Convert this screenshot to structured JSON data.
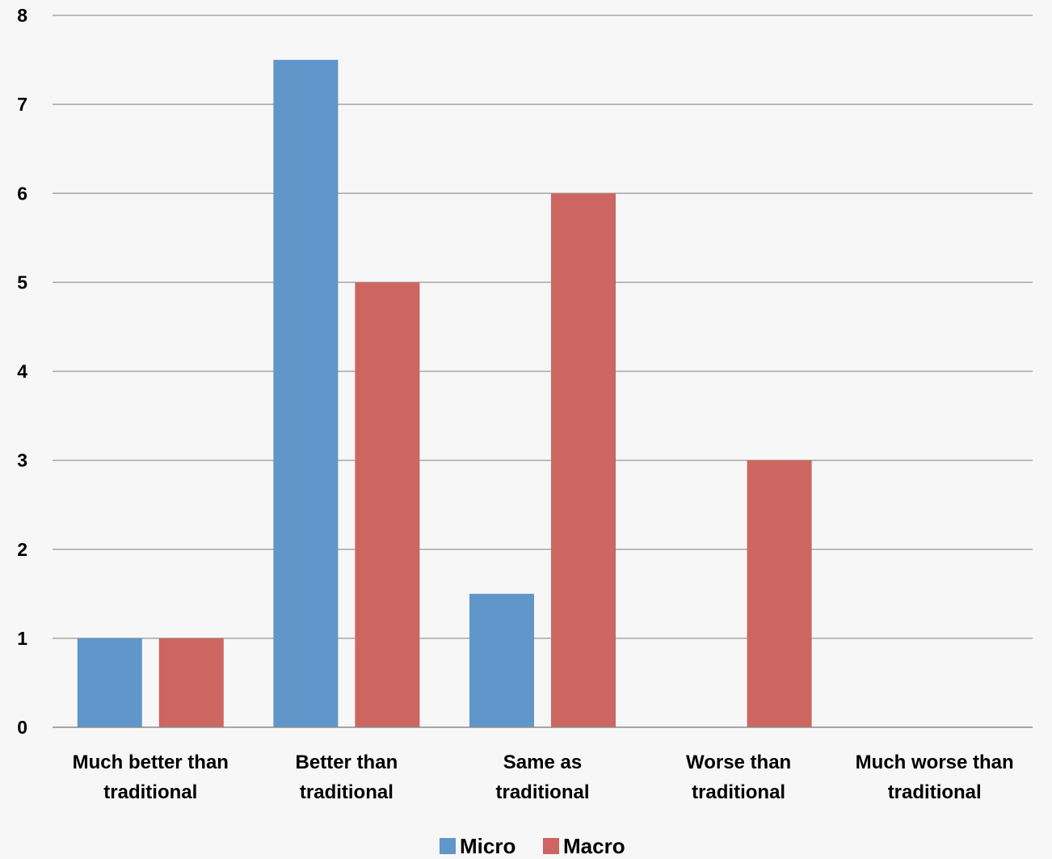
{
  "chart_data": {
    "type": "bar",
    "title": "",
    "xlabel": "",
    "ylabel": "",
    "ylim": [
      0,
      8
    ],
    "yticks": [
      0,
      1,
      2,
      3,
      4,
      5,
      6,
      7,
      8
    ],
    "grid": true,
    "legend_position": "bottom",
    "categories": [
      [
        "Much better than",
        "traditional"
      ],
      [
        "Better than",
        "traditional"
      ],
      [
        "Same as",
        "traditional"
      ],
      [
        "Worse than",
        "traditional"
      ],
      [
        "Much worse than",
        "traditional"
      ]
    ],
    "series": [
      {
        "name": "Micro",
        "color": "#6096c9",
        "values": [
          1,
          7.5,
          1.5,
          0,
          0
        ]
      },
      {
        "name": "Macro",
        "color": "#cd6660",
        "values": [
          1,
          5,
          6,
          3,
          0
        ]
      }
    ]
  }
}
